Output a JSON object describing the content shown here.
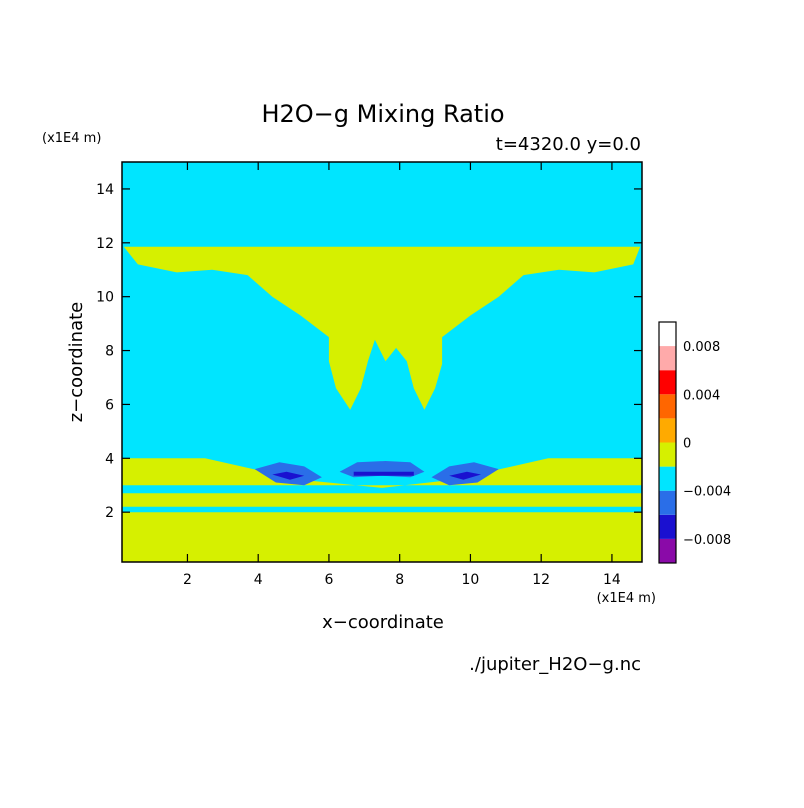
{
  "chart_data": {
    "type": "heatmap",
    "title": "H2O−g Mixing Ratio",
    "subtitle": "t=4320.0 y=0.0",
    "xlabel": "x−coordinate",
    "ylabel": "z−coordinate",
    "x_unit": "(x1E4 m)",
    "y_unit": "(x1E4 m)",
    "source_file": "./jupiter_H2O−g.nc",
    "xlim": [
      0.15,
      14.85
    ],
    "ylim": [
      0.15,
      15.0
    ],
    "x_ticks": [
      2,
      4,
      6,
      8,
      10,
      12,
      14
    ],
    "y_ticks": [
      2,
      4,
      6,
      8,
      10,
      12,
      14
    ],
    "grid": false,
    "colorbar": {
      "levels": [
        -0.01,
        -0.008,
        -0.006,
        -0.004,
        -0.002,
        0,
        0.002,
        0.004,
        0.006,
        0.008,
        0.01
      ],
      "colors": [
        "#8a0aa8",
        "#1a10d0",
        "#2a6ee8",
        "#00e5ff",
        "#d6f000",
        "#ffaa00",
        "#ff6600",
        "#ff0000",
        "#ffaaaa"
      ],
      "tick_labels": [
        "0.008",
        "0.004",
        "0",
        "−0.004",
        "−0.008"
      ],
      "tick_values": [
        0.008,
        0.004,
        0,
        -0.004,
        -0.008
      ]
    },
    "background_value_color": "#00e5ff",
    "regions": [
      {
        "name": "upper-cloud",
        "fill": "#d6f000",
        "outline": [
          [
            0.2,
            11.85
          ],
          [
            14.8,
            11.85
          ],
          [
            14.6,
            11.2
          ],
          [
            13.5,
            10.9
          ],
          [
            12.5,
            11.0
          ],
          [
            11.5,
            10.8
          ],
          [
            10.8,
            10.0
          ],
          [
            10.0,
            9.3
          ],
          [
            9.2,
            8.5
          ],
          [
            9.2,
            7.5
          ],
          [
            9.0,
            6.6
          ],
          [
            8.7,
            5.8
          ],
          [
            8.4,
            6.6
          ],
          [
            8.2,
            7.6
          ],
          [
            7.9,
            8.1
          ],
          [
            7.6,
            7.6
          ],
          [
            7.3,
            8.4
          ],
          [
            7.1,
            7.6
          ],
          [
            6.9,
            6.6
          ],
          [
            6.6,
            5.8
          ],
          [
            6.2,
            6.6
          ],
          [
            6.0,
            7.6
          ],
          [
            6.0,
            8.5
          ],
          [
            5.2,
            9.3
          ],
          [
            4.4,
            10.0
          ],
          [
            3.7,
            10.8
          ],
          [
            2.7,
            11.0
          ],
          [
            1.7,
            10.9
          ],
          [
            0.6,
            11.2
          ]
        ]
      },
      {
        "name": "lower-left-band",
        "fill": "#d6f000",
        "outline": [
          [
            0.15,
            4.0
          ],
          [
            2.5,
            4.0
          ],
          [
            5.2,
            3.2
          ],
          [
            7.5,
            2.9
          ],
          [
            9.5,
            3.2
          ],
          [
            12.2,
            4.0
          ],
          [
            14.85,
            4.0
          ],
          [
            14.85,
            3.0
          ],
          [
            0.15,
            3.0
          ]
        ]
      },
      {
        "name": "ground-band",
        "fill": "#d6f000",
        "outline": [
          [
            0.15,
            2.0
          ],
          [
            14.85,
            2.0
          ],
          [
            14.85,
            0.15
          ],
          [
            0.15,
            0.15
          ]
        ]
      },
      {
        "name": "mid-band",
        "fill": "#d6f000",
        "outline": [
          [
            0.15,
            2.7
          ],
          [
            14.85,
            2.7
          ],
          [
            14.85,
            2.2
          ],
          [
            0.15,
            2.2
          ]
        ]
      },
      {
        "name": "left-anomaly",
        "fill": "#2a6ee8",
        "outline": [
          [
            3.9,
            3.6
          ],
          [
            4.6,
            3.85
          ],
          [
            5.3,
            3.7
          ],
          [
            5.8,
            3.3
          ],
          [
            5.3,
            3.0
          ],
          [
            4.5,
            3.1
          ]
        ]
      },
      {
        "name": "right-anomaly",
        "fill": "#2a6ee8",
        "outline": [
          [
            10.8,
            3.6
          ],
          [
            10.1,
            3.85
          ],
          [
            9.4,
            3.7
          ],
          [
            8.9,
            3.3
          ],
          [
            9.4,
            3.0
          ],
          [
            10.2,
            3.1
          ]
        ]
      },
      {
        "name": "center-anomaly",
        "fill": "#2a6ee8",
        "outline": [
          [
            6.3,
            3.5
          ],
          [
            6.8,
            3.85
          ],
          [
            7.6,
            3.9
          ],
          [
            8.3,
            3.85
          ],
          [
            8.7,
            3.5
          ],
          [
            8.3,
            3.3
          ],
          [
            7.5,
            3.35
          ],
          [
            6.7,
            3.3
          ]
        ]
      },
      {
        "name": "left-core",
        "fill": "#1a10d0",
        "outline": [
          [
            4.4,
            3.4
          ],
          [
            4.8,
            3.5
          ],
          [
            5.3,
            3.35
          ],
          [
            4.9,
            3.2
          ]
        ]
      },
      {
        "name": "right-core",
        "fill": "#1a10d0",
        "outline": [
          [
            10.3,
            3.4
          ],
          [
            9.9,
            3.5
          ],
          [
            9.4,
            3.35
          ],
          [
            9.8,
            3.2
          ]
        ]
      },
      {
        "name": "center-core",
        "fill": "#1a10d0",
        "outline": [
          [
            6.7,
            3.5
          ],
          [
            8.4,
            3.5
          ],
          [
            8.4,
            3.35
          ],
          [
            6.7,
            3.35
          ]
        ]
      }
    ]
  }
}
